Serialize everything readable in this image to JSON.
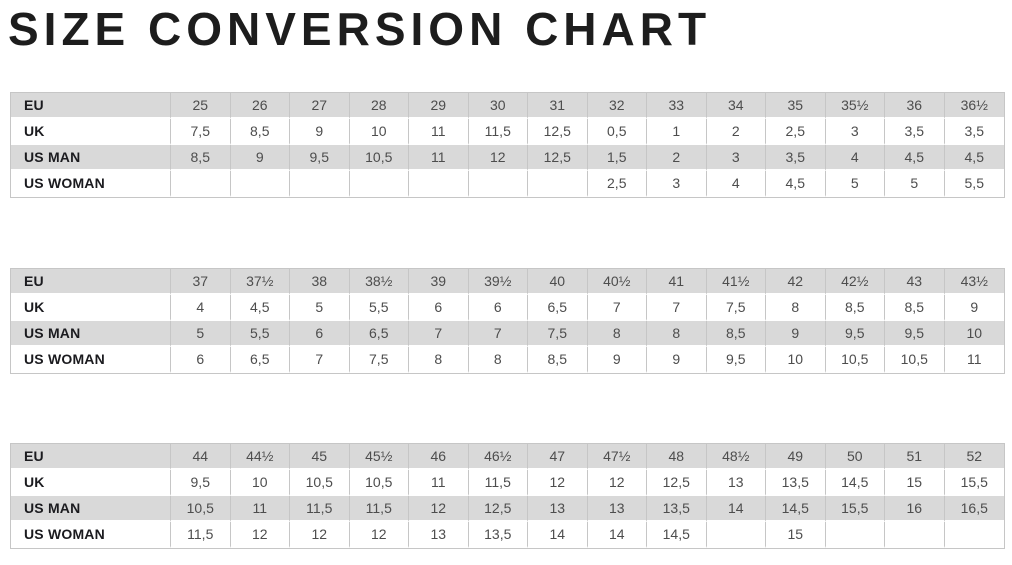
{
  "title": "SIZE CONVERSION CHART",
  "colors": {
    "background": "#ffffff",
    "title_text": "#1d1d1d",
    "row_shaded": "#d9d9d9",
    "row_plain": "#ffffff",
    "grid_border": "#c6c6c6",
    "label_text": "#1b1b1f",
    "value_text": "#4d4d4d"
  },
  "chart_data": [
    {
      "type": "table",
      "name": "sizes-eu-25-to-36half",
      "rows": [
        {
          "label": "EU",
          "values": [
            "25",
            "26",
            "27",
            "28",
            "29",
            "30",
            "31",
            "32",
            "33",
            "34",
            "35",
            "35½",
            "36",
            "36½"
          ]
        },
        {
          "label": "UK",
          "values": [
            "7,5",
            "8,5",
            "9",
            "10",
            "11",
            "11,5",
            "12,5",
            "0,5",
            "1",
            "2",
            "2,5",
            "3",
            "3,5",
            "3,5"
          ]
        },
        {
          "label": "US MAN",
          "values": [
            "8,5",
            "9",
            "9,5",
            "10,5",
            "11",
            "12",
            "12,5",
            "1,5",
            "2",
            "3",
            "3,5",
            "4",
            "4,5",
            "4,5"
          ]
        },
        {
          "label": "US WOMAN",
          "values": [
            "",
            "",
            "",
            "",
            "",
            "",
            "",
            "2,5",
            "3",
            "4",
            "4,5",
            "5",
            "5",
            "5,5"
          ]
        }
      ]
    },
    {
      "type": "table",
      "name": "sizes-eu-37-to-43half",
      "rows": [
        {
          "label": "EU",
          "values": [
            "37",
            "37½",
            "38",
            "38½",
            "39",
            "39½",
            "40",
            "40½",
            "41",
            "41½",
            "42",
            "42½",
            "43",
            "43½"
          ]
        },
        {
          "label": "UK",
          "values": [
            "4",
            "4,5",
            "5",
            "5,5",
            "6",
            "6",
            "6,5",
            "7",
            "7",
            "7,5",
            "8",
            "8,5",
            "8,5",
            "9"
          ]
        },
        {
          "label": "US MAN",
          "values": [
            "5",
            "5,5",
            "6",
            "6,5",
            "7",
            "7",
            "7,5",
            "8",
            "8",
            "8,5",
            "9",
            "9,5",
            "9,5",
            "10"
          ]
        },
        {
          "label": "US WOMAN",
          "values": [
            "6",
            "6,5",
            "7",
            "7,5",
            "8",
            "8",
            "8,5",
            "9",
            "9",
            "9,5",
            "10",
            "10,5",
            "10,5",
            "11"
          ]
        }
      ]
    },
    {
      "type": "table",
      "name": "sizes-eu-44-to-52",
      "rows": [
        {
          "label": "EU",
          "values": [
            "44",
            "44½",
            "45",
            "45½",
            "46",
            "46½",
            "47",
            "47½",
            "48",
            "48½",
            "49",
            "50",
            "51",
            "52"
          ]
        },
        {
          "label": "UK",
          "values": [
            "9,5",
            "10",
            "10,5",
            "10,5",
            "11",
            "11,5",
            "12",
            "12",
            "12,5",
            "13",
            "13,5",
            "14,5",
            "15",
            "15,5"
          ]
        },
        {
          "label": "US MAN",
          "values": [
            "10,5",
            "11",
            "11,5",
            "11,5",
            "12",
            "12,5",
            "13",
            "13",
            "13,5",
            "14",
            "14,5",
            "15,5",
            "16",
            "16,5"
          ]
        },
        {
          "label": "US WOMAN",
          "values": [
            "11,5",
            "12",
            "12",
            "12",
            "13",
            "13,5",
            "14",
            "14",
            "14,5",
            "",
            "15",
            "",
            "",
            ""
          ]
        }
      ]
    }
  ]
}
